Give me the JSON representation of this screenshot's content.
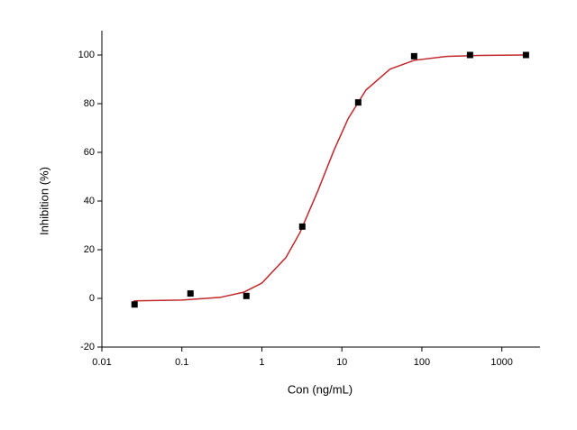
{
  "chart_data": {
    "type": "scatter",
    "x_label": "Con (ng/mL)",
    "y_label": "Inhibition (%)",
    "x": [
      0.0256,
      0.128,
      0.64,
      3.2,
      16,
      80,
      400,
      2000
    ],
    "values": [
      -2.5,
      2,
      1,
      29.5,
      80.5,
      99.5,
      100,
      100
    ],
    "color": "#000000",
    "curve": {
      "x": [
        0.025,
        0.1,
        0.3,
        0.6,
        1,
        2,
        3,
        5,
        8,
        12,
        20,
        40,
        80,
        200,
        500,
        2000
      ],
      "values": [
        -1.0,
        -0.7,
        0.4,
        2.6,
        6.3,
        16.8,
        27.1,
        44.1,
        61.0,
        73.9,
        85.6,
        94.2,
        97.8,
        99.4,
        99.8,
        100.0
      ],
      "color": "#c0282d"
    },
    "xscale": "log",
    "xlim": [
      0.01,
      3000
    ],
    "xticks": [
      0.01,
      0.1,
      1,
      10,
      100,
      1000
    ],
    "ylim": [
      -20,
      110
    ],
    "yticks": [
      -20,
      0,
      20,
      40,
      60,
      80,
      100
    ]
  }
}
